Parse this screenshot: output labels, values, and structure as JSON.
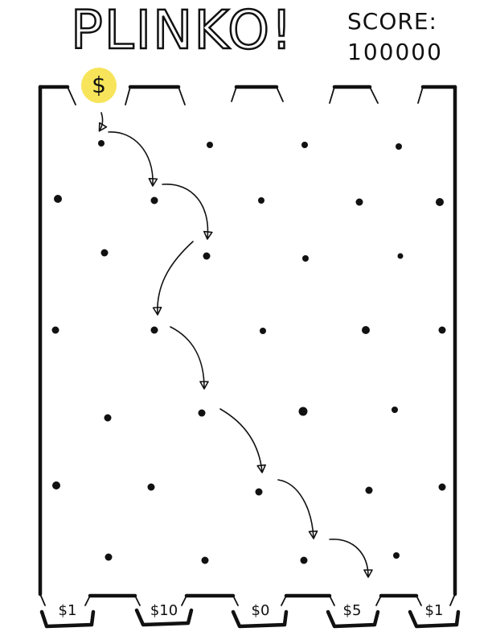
{
  "game": {
    "title": "PLINKO!",
    "score_label": "SCORE:",
    "score_value": "100000",
    "coin": {
      "symbol": "$",
      "color": "#f7e45a",
      "icon": "dollar-coin-icon"
    },
    "slots": [
      {
        "label": "$1"
      },
      {
        "label": "$10"
      },
      {
        "label": "$0"
      },
      {
        "label": "$5"
      },
      {
        "label": "$1"
      }
    ]
  },
  "colors": {
    "ink": "#111111",
    "background": "#ffffff",
    "coin": "#f7e45a"
  }
}
